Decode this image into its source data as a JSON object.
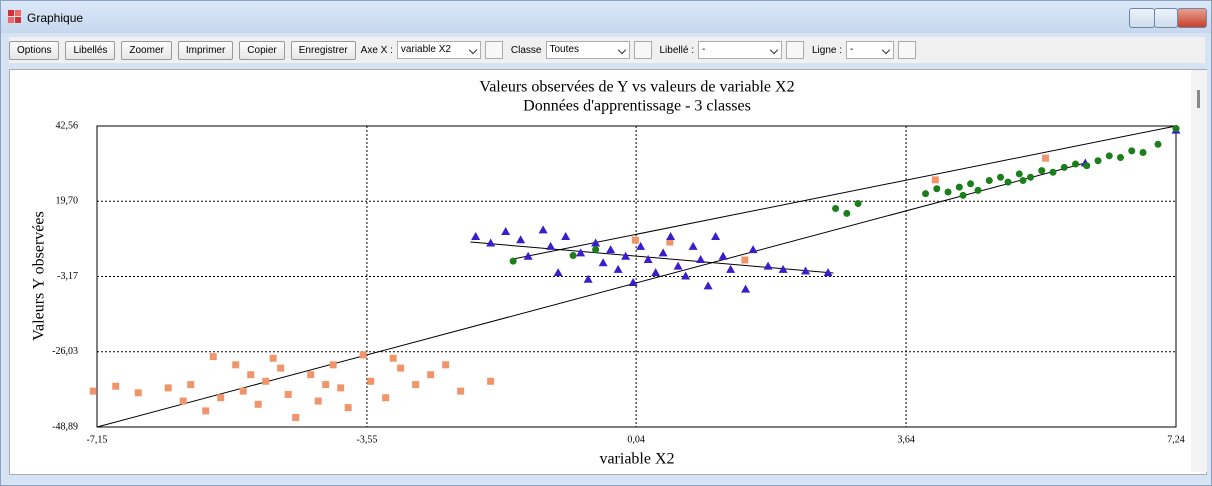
{
  "window": {
    "title": "Graphique"
  },
  "toolbar": {
    "buttons": [
      "Options",
      "Libellés",
      "Zoomer",
      "Imprimer",
      "Copier",
      "Enregistrer"
    ],
    "axe_x": {
      "label": "Axe X :",
      "value": "variable X2"
    },
    "classe": {
      "label": "Classe",
      "value": "Toutes"
    },
    "libelle": {
      "label": "Libellé :",
      "value": "-"
    },
    "ligne": {
      "label": "Ligne :",
      "value": "-"
    }
  },
  "chart_data": {
    "type": "scatter",
    "title": [
      "Valeurs observées de Y vs valeurs de variable X2",
      "Données d'apprentissage - 3 classes"
    ],
    "xlabel": "variable X2",
    "ylabel": "Valeurs Y observées",
    "xlim": [
      -7.15,
      7.24
    ],
    "xticks": [
      {
        "value": -7.15,
        "label": "-7,15"
      },
      {
        "value": -3.55,
        "label": "-3,55"
      },
      {
        "value": 0.04,
        "label": "0,04"
      },
      {
        "value": 3.64,
        "label": "3,64"
      },
      {
        "value": 7.24,
        "label": "7,24"
      }
    ],
    "ylim": [
      -48.89,
      42.56
    ],
    "yticks": [
      {
        "value": -48.89,
        "label": "-48,89"
      },
      {
        "value": -26.03,
        "label": "-26,03"
      },
      {
        "value": -3.17,
        "label": "-3,17"
      },
      {
        "value": 19.7,
        "label": "19,70"
      },
      {
        "value": 42.56,
        "label": "42,56"
      }
    ],
    "grid": true,
    "series": [
      {
        "color": "#f0956a",
        "marker": "square",
        "x": [
          -7.2,
          -6.9,
          -6.6,
          -6.2,
          -6.0,
          -5.9,
          -5.7,
          -5.5,
          -5.3,
          -5.2,
          -5.0,
          -4.9,
          -4.8,
          -4.6,
          -4.5,
          -4.3,
          -4.2,
          -4.0,
          -3.9,
          -3.8,
          -3.6,
          -3.5,
          -3.3,
          -3.1,
          -2.9,
          -2.7,
          -2.5,
          -2.3,
          -1.9,
          -5.6,
          -4.7,
          -3.2,
          -4.1,
          -5.1,
          0.03,
          0.49,
          1.49,
          4.03,
          5.5
        ],
        "y": [
          -38,
          -36.5,
          -38.5,
          -37,
          -41,
          -36,
          -44,
          -40,
          -30,
          -38,
          -42,
          -35,
          -28,
          -39,
          -46,
          -33,
          -41,
          -30,
          -37,
          -43,
          -27,
          -35,
          -40,
          -31,
          -36,
          -33,
          -30,
          -38,
          -35,
          -27.5,
          -31,
          -28,
          -36,
          -33,
          7.9,
          7.3,
          1.85,
          26.2,
          32.8
        ]
      },
      {
        "color": "#3d1ccc",
        "marker": "triangle",
        "x": [
          -2.1,
          -1.9,
          -1.7,
          -1.5,
          -1.4,
          -1.2,
          -1.1,
          -1.0,
          -0.9,
          -0.7,
          -0.6,
          -0.5,
          -0.4,
          -0.3,
          -0.2,
          -0.1,
          0.0,
          0.1,
          0.2,
          0.3,
          0.4,
          0.5,
          0.6,
          0.7,
          0.8,
          0.9,
          1.0,
          1.1,
          1.2,
          1.3,
          1.5,
          1.6,
          1.8,
          2.0,
          2.3,
          2.6,
          6.03,
          7.24
        ],
        "y": [
          9,
          7,
          10.5,
          8,
          3,
          11,
          6,
          -2,
          9,
          4,
          -4,
          7,
          1,
          5,
          -1,
          3,
          -5,
          6,
          2,
          -2,
          4,
          9,
          0,
          -3,
          6,
          2,
          -6,
          9,
          3,
          -1,
          -7,
          5,
          0,
          -1,
          -1.5,
          -2,
          31.3,
          41.3
        ]
      },
      {
        "color": "#1a7f1a",
        "marker": "circle",
        "x": [
          -1.6,
          -0.8,
          -0.5,
          2.7,
          2.85,
          3.0,
          3.9,
          4.05,
          4.2,
          4.35,
          4.5,
          4.6,
          4.75,
          4.9,
          5.0,
          5.15,
          5.3,
          5.45,
          5.6,
          5.75,
          5.9,
          6.05,
          6.2,
          6.35,
          6.5,
          6.65,
          6.8,
          7.0,
          7.24,
          5.2,
          4.4
        ],
        "y": [
          1.5,
          3.2,
          5,
          17.5,
          16,
          19,
          22,
          23.5,
          22.5,
          24,
          25,
          23,
          26,
          27,
          25.5,
          28,
          27,
          29,
          28.5,
          30,
          31,
          30.5,
          32,
          33.5,
          33,
          35,
          34.5,
          37,
          41.8,
          26,
          21.5
        ]
      }
    ],
    "lines": [
      {
        "x": [
          -7.15,
          6.03
        ],
        "y": [
          -48.89,
          31.32
        ]
      },
      {
        "x": [
          -1.6,
          7.24
        ],
        "y": [
          2.15,
          42.56
        ]
      },
      {
        "x": [
          -2.17,
          2.67
        ],
        "y": [
          7.32,
          -2.1
        ]
      }
    ]
  }
}
